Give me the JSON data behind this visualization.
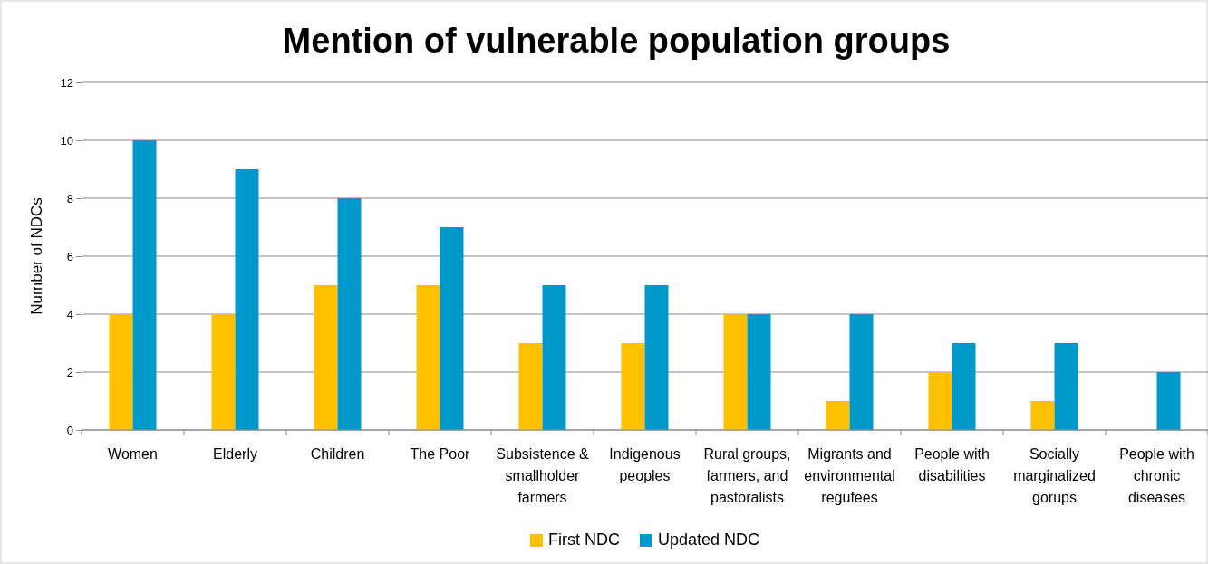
{
  "chart_data": {
    "type": "bar",
    "title": "Mention of vulnerable population groups",
    "ylabel": "Number of NDCs",
    "categories": [
      "Women",
      "Elderly",
      "Children",
      "The Poor",
      "Subsistence & smallholder farmers",
      "Indigenous peoples",
      "Rural groups, farmers, and pastoralists",
      "Migrants and environmental regufees",
      "People with disabilities",
      "Socially marginalized gorups",
      "People with chronic diseases"
    ],
    "series": [
      {
        "name": "First NDC",
        "color": "#ffc000",
        "values": [
          4,
          4,
          5,
          5,
          3,
          3,
          4,
          1,
          2,
          1,
          0
        ]
      },
      {
        "name": "Updated NDC",
        "color": "#0099cc",
        "values": [
          10,
          9,
          8,
          7,
          5,
          5,
          4,
          4,
          3,
          3,
          2
        ]
      }
    ],
    "ylim": [
      0,
      12
    ],
    "yticks": [
      0,
      2,
      4,
      6,
      8,
      10,
      12
    ],
    "grid": "y",
    "legend": "bottom"
  }
}
